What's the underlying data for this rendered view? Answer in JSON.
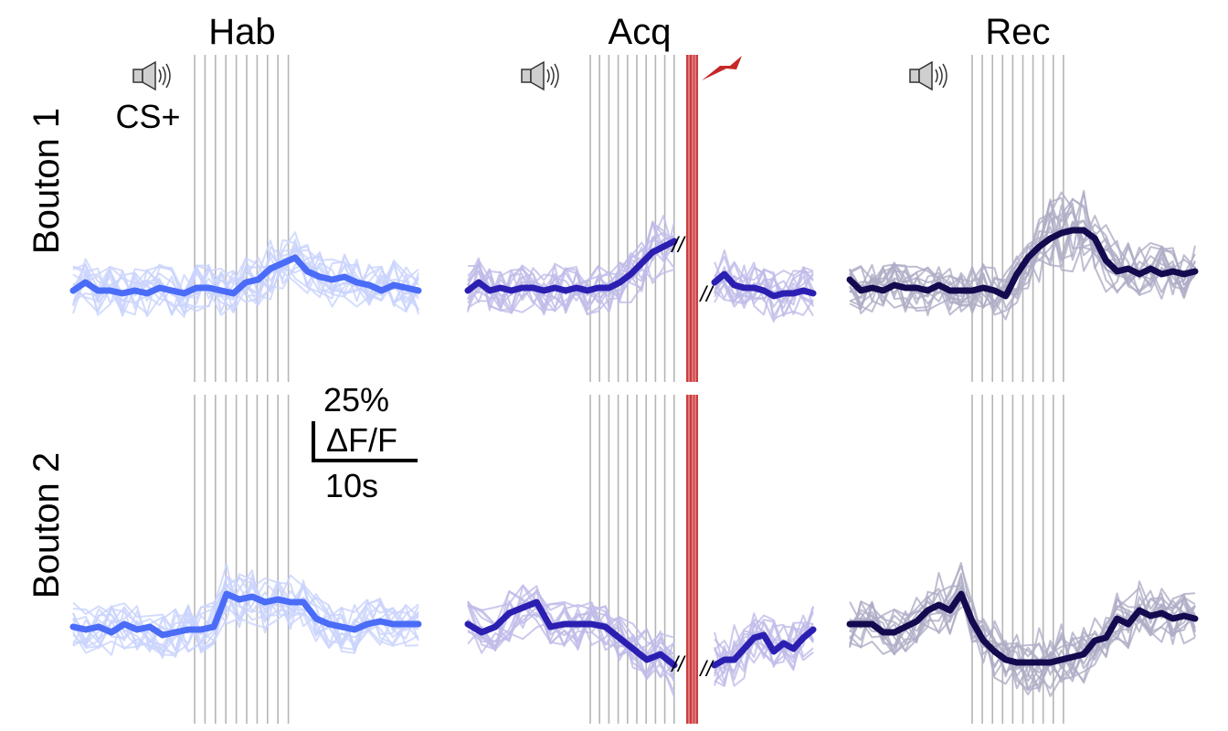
{
  "chart_data": {
    "type": "line",
    "title": "",
    "conditions": [
      "Hab",
      "Acq",
      "Rec"
    ],
    "rows": [
      "Bouton 1",
      "Bouton 2"
    ],
    "cue_label": "CS+",
    "scale_bar": {
      "y_value_label": "25%",
      "y_unit_label": "ΔF/F",
      "x_value_label": "10s"
    },
    "break_mark": "//",
    "colors": {
      "Hab": "#4a6cf7",
      "Acq": "#2b1fb2",
      "Rec": "#140a4f",
      "shock": "#c62828",
      "grid": "#b5b5b5"
    },
    "mean_traces": {
      "Bouton 1": {
        "Hab": [
          0,
          3,
          0,
          0,
          -1,
          0,
          -1,
          1,
          0,
          -1,
          1,
          1,
          0,
          -1,
          3,
          4,
          8,
          10,
          12,
          7,
          5,
          4,
          5,
          3,
          2,
          0,
          2,
          1,
          0
        ],
        "Acq": {
          "pre": [
            0,
            3,
            0,
            1,
            0,
            1,
            1,
            0,
            1,
            0,
            1,
            0,
            1,
            1,
            3,
            6,
            10,
            14,
            16,
            18
          ],
          "post": [
            3,
            6,
            2,
            1,
            1,
            0,
            -2,
            -1,
            -1,
            0,
            -1
          ]
        },
        "Rec": [
          4,
          0,
          1,
          0,
          2,
          1,
          1,
          0,
          2,
          0,
          0,
          0,
          1,
          0,
          -2,
          6,
          12,
          16,
          19,
          21,
          22,
          22,
          19,
          11,
          7,
          8,
          6,
          8,
          6,
          7,
          6,
          7
        ]
      },
      "Bouton 2": {
        "Hab": [
          0,
          -1,
          0,
          -2,
          1,
          -1,
          0,
          -3,
          -2,
          -1,
          -1,
          0,
          12,
          10,
          11,
          9,
          10,
          9,
          9,
          3,
          1,
          0,
          -1,
          1,
          2,
          1,
          1,
          1
        ],
        "Acq": {
          "pre": [
            1,
            -2,
            0,
            5,
            7,
            9,
            0,
            1,
            1,
            1,
            0,
            -4,
            -8,
            -12,
            -10,
            -14
          ],
          "post": [
            -14,
            -12,
            -12,
            -8,
            -4,
            -3,
            -9,
            -6,
            -8,
            -4,
            -1
          ]
        },
        "Rec": [
          1,
          1,
          1,
          -2,
          -2,
          0,
          2,
          6,
          8,
          6,
          12,
          2,
          -5,
          -9,
          -12,
          -13,
          -13,
          -13,
          -13,
          -12,
          -11,
          -10,
          -5,
          -4,
          3,
          1,
          6,
          4,
          5,
          3,
          4,
          3
        ]
      }
    }
  },
  "icons": {
    "speaker": "speaker-icon",
    "shock": "lightning-bolt-icon"
  }
}
